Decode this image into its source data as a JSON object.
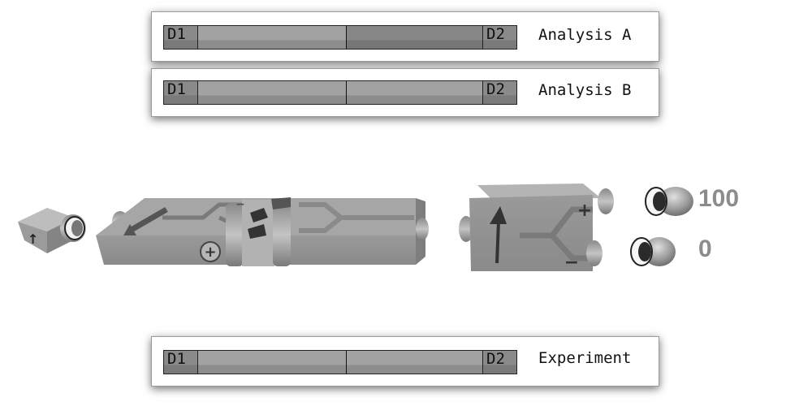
{
  "panels": {
    "analysis_a": {
      "left_cap": "D1",
      "right_cap": "D2",
      "label": "Analysis A"
    },
    "analysis_b": {
      "left_cap": "D1",
      "right_cap": "D2",
      "label": "Analysis B"
    },
    "experiment": {
      "left_cap": "D1",
      "right_cap": "D2",
      "label": "Experiment"
    }
  },
  "apparatus": {
    "source_arrow": "↑",
    "filter_1_labels": {
      "plus": "+",
      "minus": "−"
    },
    "filter_2_labels": {
      "plus": "+",
      "minus": "−"
    },
    "counts": {
      "plus": "100",
      "minus": "0"
    }
  },
  "colors": {
    "bar_light": "#a2a2a2",
    "bar_dark": "#878787",
    "device_body": "#8e8e8e",
    "count_text": "#8c8c8c"
  }
}
